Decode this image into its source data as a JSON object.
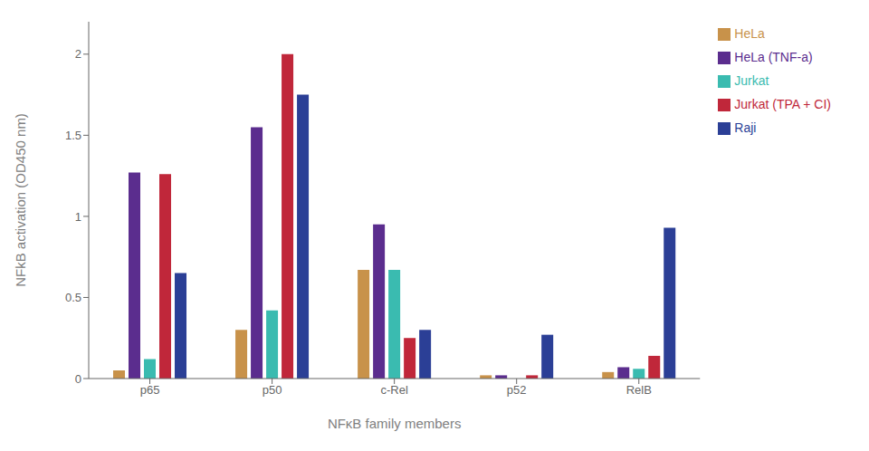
{
  "chart_data": {
    "type": "bar",
    "categories": [
      "p65",
      "p50",
      "c-Rel",
      "p52",
      "RelB"
    ],
    "series": [
      {
        "name": "HeLa",
        "color": "#C8924A",
        "values": [
          0.05,
          0.3,
          0.67,
          0.02,
          0.04
        ]
      },
      {
        "name": "HeLa (TNF-a)",
        "color": "#5B2D8E",
        "values": [
          1.27,
          1.55,
          0.95,
          0.02,
          0.07
        ]
      },
      {
        "name": "Jurkat",
        "color": "#3ABBB0",
        "values": [
          0.12,
          0.42,
          0.67,
          0.0,
          0.06
        ]
      },
      {
        "name": "Jurkat (TPA + CI)",
        "color": "#C0273A",
        "values": [
          1.26,
          2.0,
          0.25,
          0.02,
          0.14
        ]
      },
      {
        "name": "Raji",
        "color": "#2B3F96",
        "values": [
          0.65,
          1.75,
          0.3,
          0.27,
          0.93
        ]
      }
    ],
    "ylabel": "NFkB activation (OD450 nm)",
    "xlabel": "NFκB family members",
    "ylim": [
      0,
      2.2
    ],
    "yticks": [
      0,
      0.5,
      1,
      1.5,
      2
    ],
    "grid": false,
    "legend": "right"
  }
}
